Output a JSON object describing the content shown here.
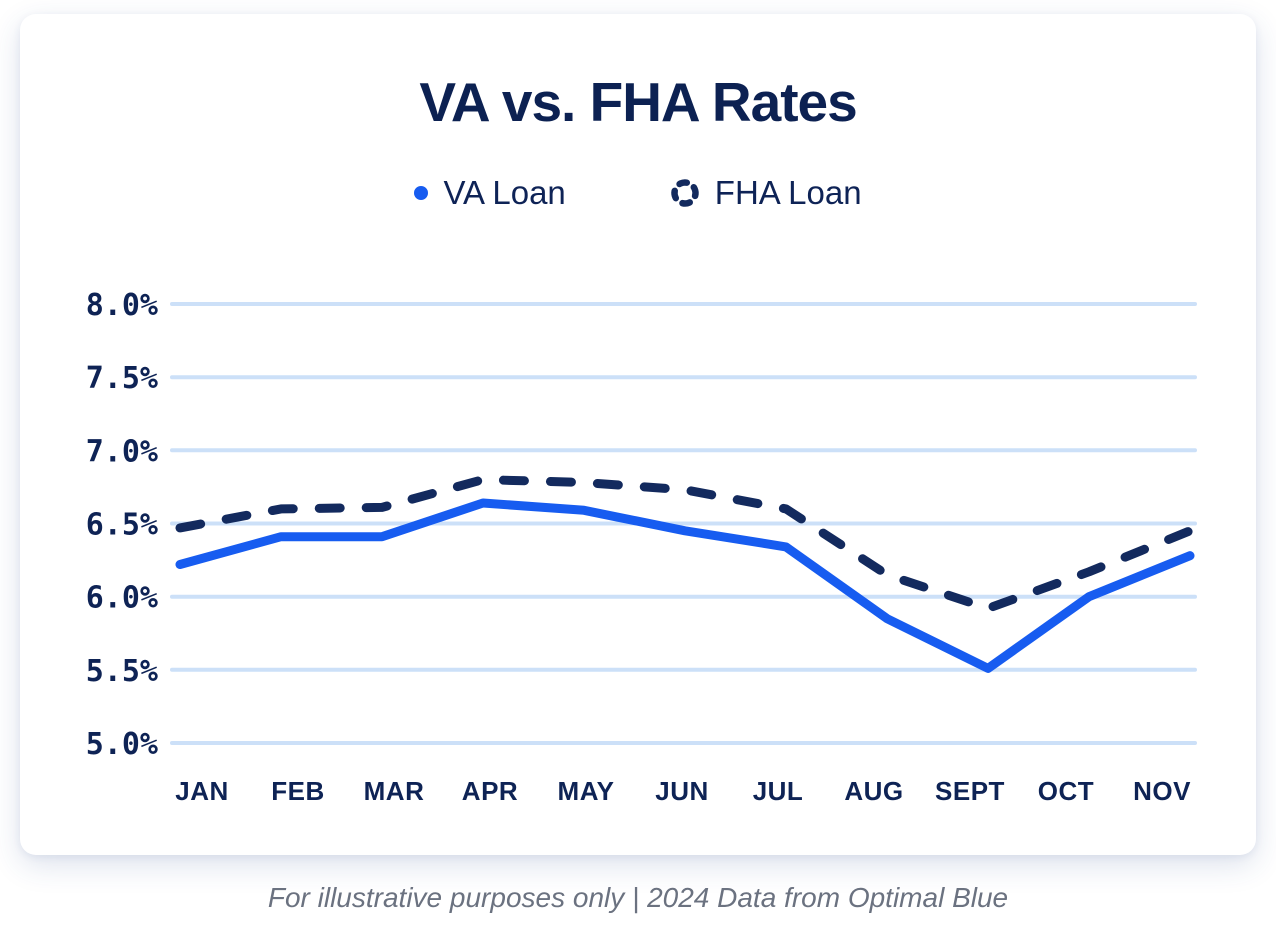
{
  "chart_data": {
    "type": "line",
    "title": "VA vs. FHA Rates",
    "categories": [
      "JAN",
      "FEB",
      "MAR",
      "APR",
      "MAY",
      "JUN",
      "JUL",
      "AUG",
      "SEPT",
      "OCT",
      "NOV"
    ],
    "series": [
      {
        "name": "VA Loan",
        "style": "solid",
        "color": "#175cf0",
        "values": [
          6.22,
          6.41,
          6.41,
          6.64,
          6.59,
          6.45,
          6.34,
          5.85,
          5.51,
          6.0,
          6.28
        ]
      },
      {
        "name": "FHA Loan",
        "style": "dashed",
        "color": "#132a5e",
        "values": [
          6.47,
          6.6,
          6.61,
          6.8,
          6.78,
          6.73,
          6.6,
          6.15,
          5.92,
          6.17,
          6.45
        ]
      }
    ],
    "y_ticks": {
      "labels": [
        "8.0%",
        "7.5%",
        "7.0%",
        "6.5%",
        "6.0%",
        "5.5%",
        "5.0%"
      ],
      "values": [
        8.0,
        7.5,
        7.0,
        6.5,
        6.0,
        5.5,
        5.0
      ]
    },
    "ylim": [
      5.0,
      8.0
    ],
    "xlabel": "",
    "ylabel": "",
    "grid": true,
    "legend_position": "top"
  },
  "footer": {
    "note": "For illustrative purposes only | 2024 Data from Optimal Blue"
  },
  "colors": {
    "title_navy": "#0c2152",
    "text_navy": "#0e2355",
    "va_blue": "#175cf0",
    "fha_navy": "#132a5e",
    "gridline": "#cce0f8",
    "footer_gray": "#6b7280",
    "card_bg": "#ffffff"
  }
}
